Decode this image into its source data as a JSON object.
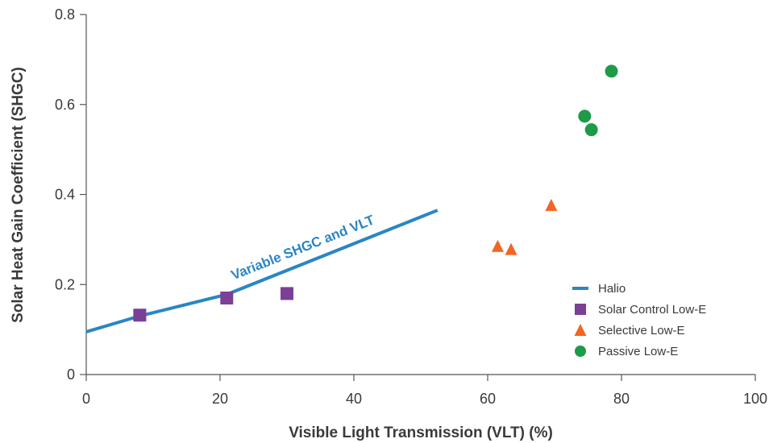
{
  "chart_data": {
    "type": "scatter",
    "xlabel": "Visible Light Transmission (VLT) (%)",
    "ylabel": "Solar Heat Gain Coefficient (SHGC)",
    "xlim": [
      0,
      100
    ],
    "ylim": [
      0,
      0.8
    ],
    "x_ticks": [
      "0",
      "20",
      "40",
      "60",
      "80",
      "100"
    ],
    "y_ticks": [
      "0",
      "0.2",
      "0.4",
      "0.6",
      "0.8"
    ],
    "grid": false,
    "legend_position": "bottom-right",
    "series": [
      {
        "name": "Halio",
        "mark": "line",
        "color": "#2a86c4",
        "points": [
          [
            0,
            0.095
          ],
          [
            8,
            0.13
          ],
          [
            21,
            0.178
          ],
          [
            52.5,
            0.365
          ]
        ]
      },
      {
        "name": "Solar Control Low-E",
        "mark": "square",
        "color": "#7b3f98",
        "points": [
          [
            8,
            0.132
          ],
          [
            21,
            0.17
          ],
          [
            30,
            0.18
          ]
        ]
      },
      {
        "name": "Selective Low-E",
        "mark": "triangle",
        "color": "#f26522",
        "points": [
          [
            61.5,
            0.285
          ],
          [
            63.5,
            0.278
          ],
          [
            69.5,
            0.376
          ]
        ]
      },
      {
        "name": "Passive Low-E",
        "mark": "circle",
        "color": "#1e9a48",
        "points": [
          [
            74.5,
            0.574
          ],
          [
            75.5,
            0.544
          ],
          [
            78.5,
            0.674
          ]
        ]
      }
    ],
    "annotations": [
      {
        "text": "Variable SHGC and VLT",
        "x": 22,
        "y": 0.21,
        "color": "#2a86c4"
      }
    ]
  }
}
